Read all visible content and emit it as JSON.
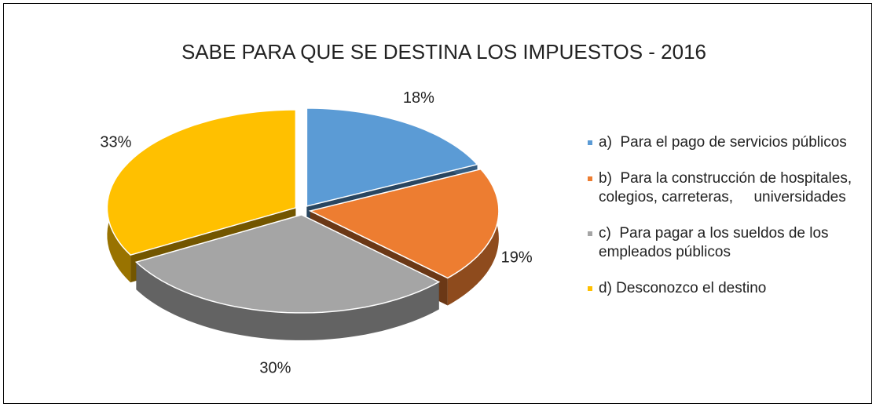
{
  "chart_data": {
    "type": "pie",
    "title": "SABE PARA QUE SE DESTINA LOS IMPUESTOS - 2016",
    "categories": [
      "a)  Para el pago de servicios públicos",
      "b)  Para la construcción de hospitales, colegios, carreteras,     universidades",
      "c)  Para pagar a los sueldos de los empleados públicos",
      "d) Desconozco el destino"
    ],
    "values": [
      18,
      19,
      30,
      33
    ],
    "value_labels": [
      "18%",
      "19%",
      "30%",
      "33%"
    ],
    "colors": [
      "#5b9bd5",
      "#ed7d31",
      "#a5a5a5",
      "#ffc000"
    ],
    "legend": "right"
  }
}
